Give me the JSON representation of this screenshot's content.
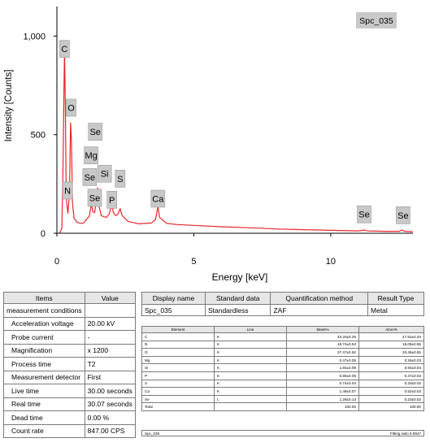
{
  "chart_data": {
    "type": "line",
    "title": "",
    "legend_box": "Spc_035",
    "xlabel": "Energy [keV]",
    "ylabel": "Intensity [Counts]",
    "xlim": [
      0,
      13
    ],
    "ylim": [
      0,
      1150
    ],
    "x_ticks": [
      0,
      5,
      10
    ],
    "x_tick_labels": [
      "0",
      "5",
      "10"
    ],
    "y_ticks": [
      0,
      500,
      1000
    ],
    "y_tick_labels": [
      "0",
      "500",
      "1,000"
    ],
    "line_color": "#e8262a",
    "series": [
      {
        "values": [
          [
            0.1,
            0
          ],
          [
            0.18,
            25
          ],
          [
            0.22,
            300
          ],
          [
            0.26,
            760
          ],
          [
            0.28,
            930
          ],
          [
            0.31,
            640
          ],
          [
            0.34,
            180
          ],
          [
            0.4,
            100
          ],
          [
            0.46,
            200
          ],
          [
            0.5,
            560
          ],
          [
            0.53,
            470
          ],
          [
            0.57,
            150
          ],
          [
            0.63,
            75
          ],
          [
            0.75,
            55
          ],
          [
            0.9,
            50
          ],
          [
            1.0,
            55
          ],
          [
            1.1,
            75
          ],
          [
            1.18,
            85
          ],
          [
            1.26,
            150
          ],
          [
            1.31,
            110
          ],
          [
            1.38,
            105
          ],
          [
            1.43,
            160
          ],
          [
            1.49,
            230
          ],
          [
            1.54,
            135
          ],
          [
            1.62,
            90
          ],
          [
            1.7,
            85
          ],
          [
            1.8,
            80
          ],
          [
            1.9,
            95
          ],
          [
            2.01,
            145
          ],
          [
            2.06,
            105
          ],
          [
            2.15,
            90
          ],
          [
            2.22,
            95
          ],
          [
            2.31,
            125
          ],
          [
            2.38,
            90
          ],
          [
            2.6,
            60
          ],
          [
            3.0,
            48
          ],
          [
            3.45,
            52
          ],
          [
            3.6,
            70
          ],
          [
            3.69,
            135
          ],
          [
            3.75,
            80
          ],
          [
            4.01,
            50
          ],
          [
            4.4,
            44
          ],
          [
            5.0,
            40
          ],
          [
            6.0,
            33
          ],
          [
            7.0,
            28
          ],
          [
            8.0,
            22
          ],
          [
            9.0,
            18
          ],
          [
            10.0,
            15
          ],
          [
            11.0,
            12
          ],
          [
            11.22,
            16
          ],
          [
            11.35,
            12
          ],
          [
            12.0,
            10
          ],
          [
            12.5,
            10
          ],
          [
            12.6,
            16
          ],
          [
            12.7,
            10
          ],
          [
            13.0,
            8
          ]
        ]
      }
    ],
    "peak_labels": [
      {
        "text": "C",
        "x": 0.28,
        "y": 935
      },
      {
        "text": "O",
        "x": 0.52,
        "y": 637
      },
      {
        "text": "Se",
        "x": 1.4,
        "y": 515
      },
      {
        "text": "Mg",
        "x": 1.25,
        "y": 395
      },
      {
        "text": "Se",
        "x": 1.2,
        "y": 285
      },
      {
        "text": "Si",
        "x": 1.74,
        "y": 302
      },
      {
        "text": "S",
        "x": 2.31,
        "y": 277
      },
      {
        "text": "N",
        "x": 0.39,
        "y": 217
      },
      {
        "text": "Se",
        "x": 1.38,
        "y": 180
      },
      {
        "text": "P",
        "x": 2.01,
        "y": 170
      },
      {
        "text": "Ca",
        "x": 3.69,
        "y": 175
      },
      {
        "text": "Se",
        "x": 11.22,
        "y": 96
      },
      {
        "text": "Se",
        "x": 12.64,
        "y": 91
      }
    ],
    "grid": false
  },
  "measurement_table": {
    "header_items": "Items",
    "header_value": "Value",
    "section": "measurement conditions",
    "rows": [
      {
        "label": "Acceleration voltage",
        "value": "20.00 kV"
      },
      {
        "label": "Probe current",
        "value": "-"
      },
      {
        "label": "Magnification",
        "value": "x 1200"
      },
      {
        "label": "Process time",
        "value": "T2"
      },
      {
        "label": "Measurement detector",
        "value": "First"
      },
      {
        "label": "Live time",
        "value": "30.00 seconds"
      },
      {
        "label": "Real time",
        "value": "30.07 seconds"
      },
      {
        "label": "Dead time",
        "value": "0.00 %"
      },
      {
        "label": "Count rate",
        "value": "847.00 CPS"
      }
    ]
  },
  "info_table": {
    "headers": [
      "Display name",
      "Standard data",
      "Quantification method",
      "Result Type"
    ],
    "row": [
      "Spc_035",
      "Standardless",
      "ZAF",
      "Metal"
    ]
  },
  "quant_table": {
    "headers": [
      "Element",
      "Line",
      "Mass%",
      "Atom%"
    ],
    "rows": [
      [
        "C",
        "K",
        "40.20±0.29",
        "47.82±0.34"
      ],
      [
        "N",
        "K",
        "15.74±0.54",
        "16.06±0.55"
      ],
      [
        "O",
        "K",
        "37.47±0.62",
        "33.46±0.55"
      ],
      [
        "Mg",
        "K",
        "0.47±0.05",
        "0.28±0.03"
      ],
      [
        "Si",
        "K",
        "1.84±0.08",
        "0.94±0.04"
      ],
      [
        "P",
        "K",
        "0.80±0.05",
        "0.37±0.02"
      ],
      [
        "S",
        "K",
        "0.74±0.04",
        "0.33±0.02"
      ],
      [
        "Ca",
        "K",
        "1.46±0.07",
        "0.52±0.03"
      ],
      [
        "Se",
        "L",
        "1.28±0.13",
        "0.23±0.02"
      ]
    ],
    "total_label": "Total",
    "total_mass": "100.00",
    "total_atom": "100.00",
    "footer_name": "Spc_035",
    "fitting_ratio": "Fitting ratio 0.0847"
  }
}
